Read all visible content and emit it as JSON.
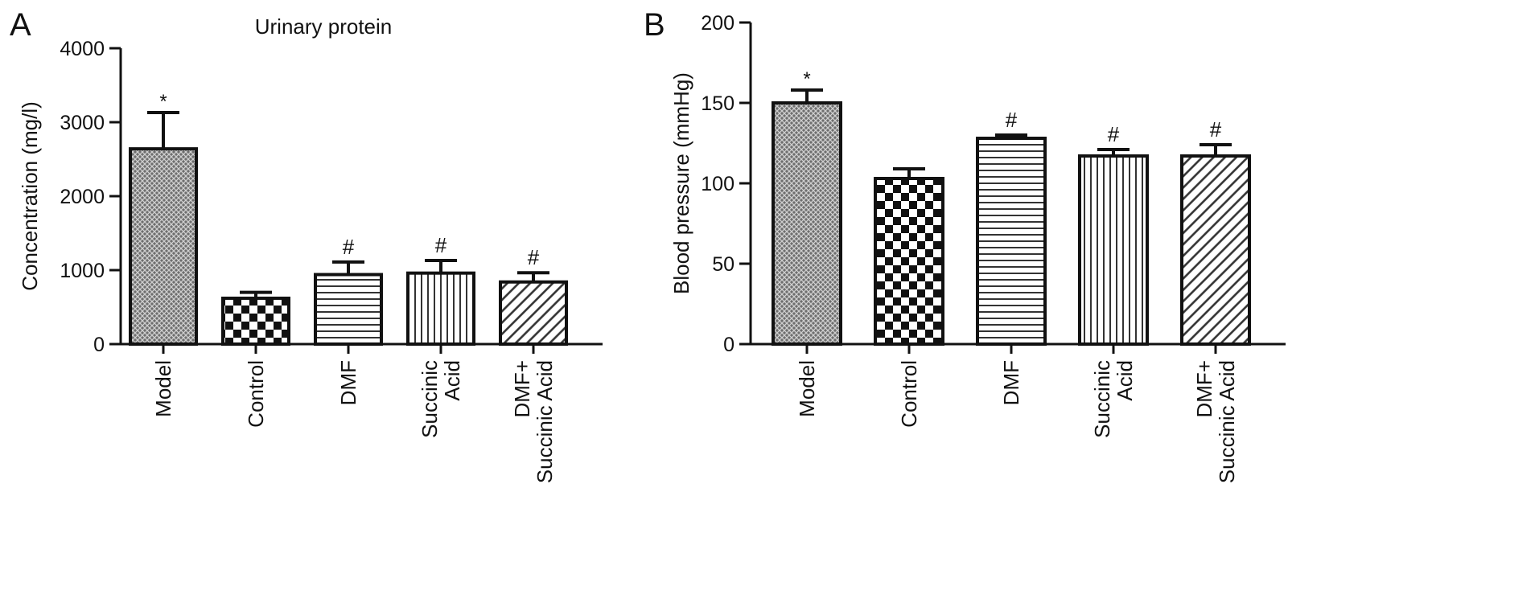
{
  "chart_data": [
    {
      "type": "bar",
      "panel_label": "A",
      "title": "Urinary protein",
      "xlabel": "",
      "ylabel": "Concentration (mg/l)",
      "ylim": [
        0,
        4000
      ],
      "yticks": [
        0,
        1000,
        2000,
        3000,
        4000
      ],
      "categories": [
        [
          "Model"
        ],
        [
          "Control"
        ],
        [
          "DMF"
        ],
        [
          "Succinic",
          "Acid"
        ],
        [
          "DMF+",
          "Succinic Acid"
        ]
      ],
      "values": [
        2640,
        620,
        940,
        960,
        840
      ],
      "errors": [
        490,
        80,
        170,
        170,
        125
      ],
      "annotations": [
        "*",
        "",
        "#",
        "#",
        "#"
      ],
      "patterns": [
        "crosshatch",
        "checker",
        "horizontal",
        "vertical",
        "diagonal"
      ],
      "grid": false,
      "legend": "none"
    },
    {
      "type": "bar",
      "panel_label": "B",
      "title": "",
      "xlabel": "",
      "ylabel": "Blood pressure (mmHg)",
      "ylim": [
        0,
        200
      ],
      "yticks": [
        0,
        50,
        100,
        150,
        200
      ],
      "categories": [
        [
          "Model"
        ],
        [
          "Control"
        ],
        [
          "DMF"
        ],
        [
          "Succinic",
          "Acid"
        ],
        [
          "DMF+",
          "Succinic Acid"
        ]
      ],
      "values": [
        150,
        103,
        128,
        117,
        117
      ],
      "errors": [
        8,
        6,
        2,
        4,
        7
      ],
      "annotations": [
        "*",
        "",
        "#",
        "#",
        "#"
      ],
      "patterns": [
        "crosshatch",
        "checker",
        "horizontal",
        "vertical",
        "diagonal"
      ],
      "grid": false,
      "legend": "none"
    }
  ]
}
